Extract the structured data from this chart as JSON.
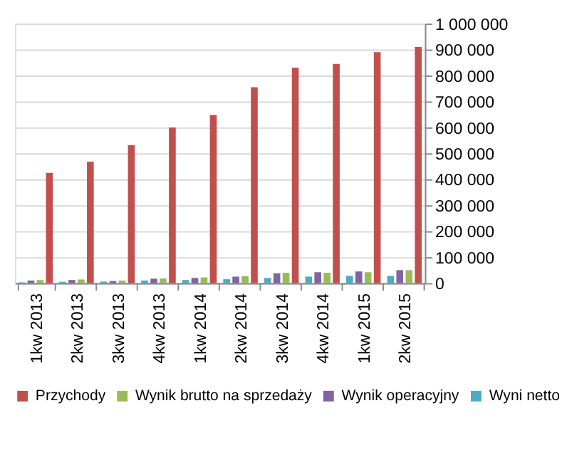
{
  "chart_data": {
    "type": "bar",
    "categories": [
      "1kw 2013",
      "2kw 2013",
      "3kw 2013",
      "4kw 2013",
      "1kw 2014",
      "2kw 2014",
      "3kw 2014",
      "4kw 2014",
      "1kw 2015",
      "2kw 2015"
    ],
    "series": [
      {
        "name": "Przychody",
        "color": "#c0504d",
        "values": [
          425000,
          468000,
          532000,
          600000,
          648000,
          755000,
          830000,
          845000,
          890000,
          910000
        ]
      },
      {
        "name": "Wynik brutto na sprzedaży",
        "color": "#9bbb59",
        "values": [
          12000,
          14000,
          10000,
          18000,
          22000,
          27000,
          40000,
          40000,
          42000,
          50000
        ]
      },
      {
        "name": "Wynik operacyjny",
        "color": "#8064a2",
        "values": [
          10000,
          12000,
          8000,
          17000,
          20000,
          25000,
          38000,
          42000,
          45000,
          50000
        ]
      },
      {
        "name": "Wyni netto",
        "color": "#4bacc6",
        "values": [
          3000,
          5000,
          6000,
          10000,
          12000,
          15000,
          20000,
          25000,
          28000,
          28000
        ]
      }
    ],
    "ylim": [
      0,
      1000000
    ],
    "yticks": [
      {
        "value": 0,
        "label": "0"
      },
      {
        "value": 100000,
        "label": "100 000"
      },
      {
        "value": 200000,
        "label": "200 000"
      },
      {
        "value": 300000,
        "label": "300 000"
      },
      {
        "value": 400000,
        "label": "400 000"
      },
      {
        "value": 500000,
        "label": "500 000"
      },
      {
        "value": 600000,
        "label": "600 000"
      },
      {
        "value": 700000,
        "label": "700 000"
      },
      {
        "value": 800000,
        "label": "800 000"
      },
      {
        "value": 900000,
        "label": "900 000"
      },
      {
        "value": 1000000,
        "label": "1 000 000"
      }
    ],
    "grid": "y",
    "legend": "bottom"
  }
}
